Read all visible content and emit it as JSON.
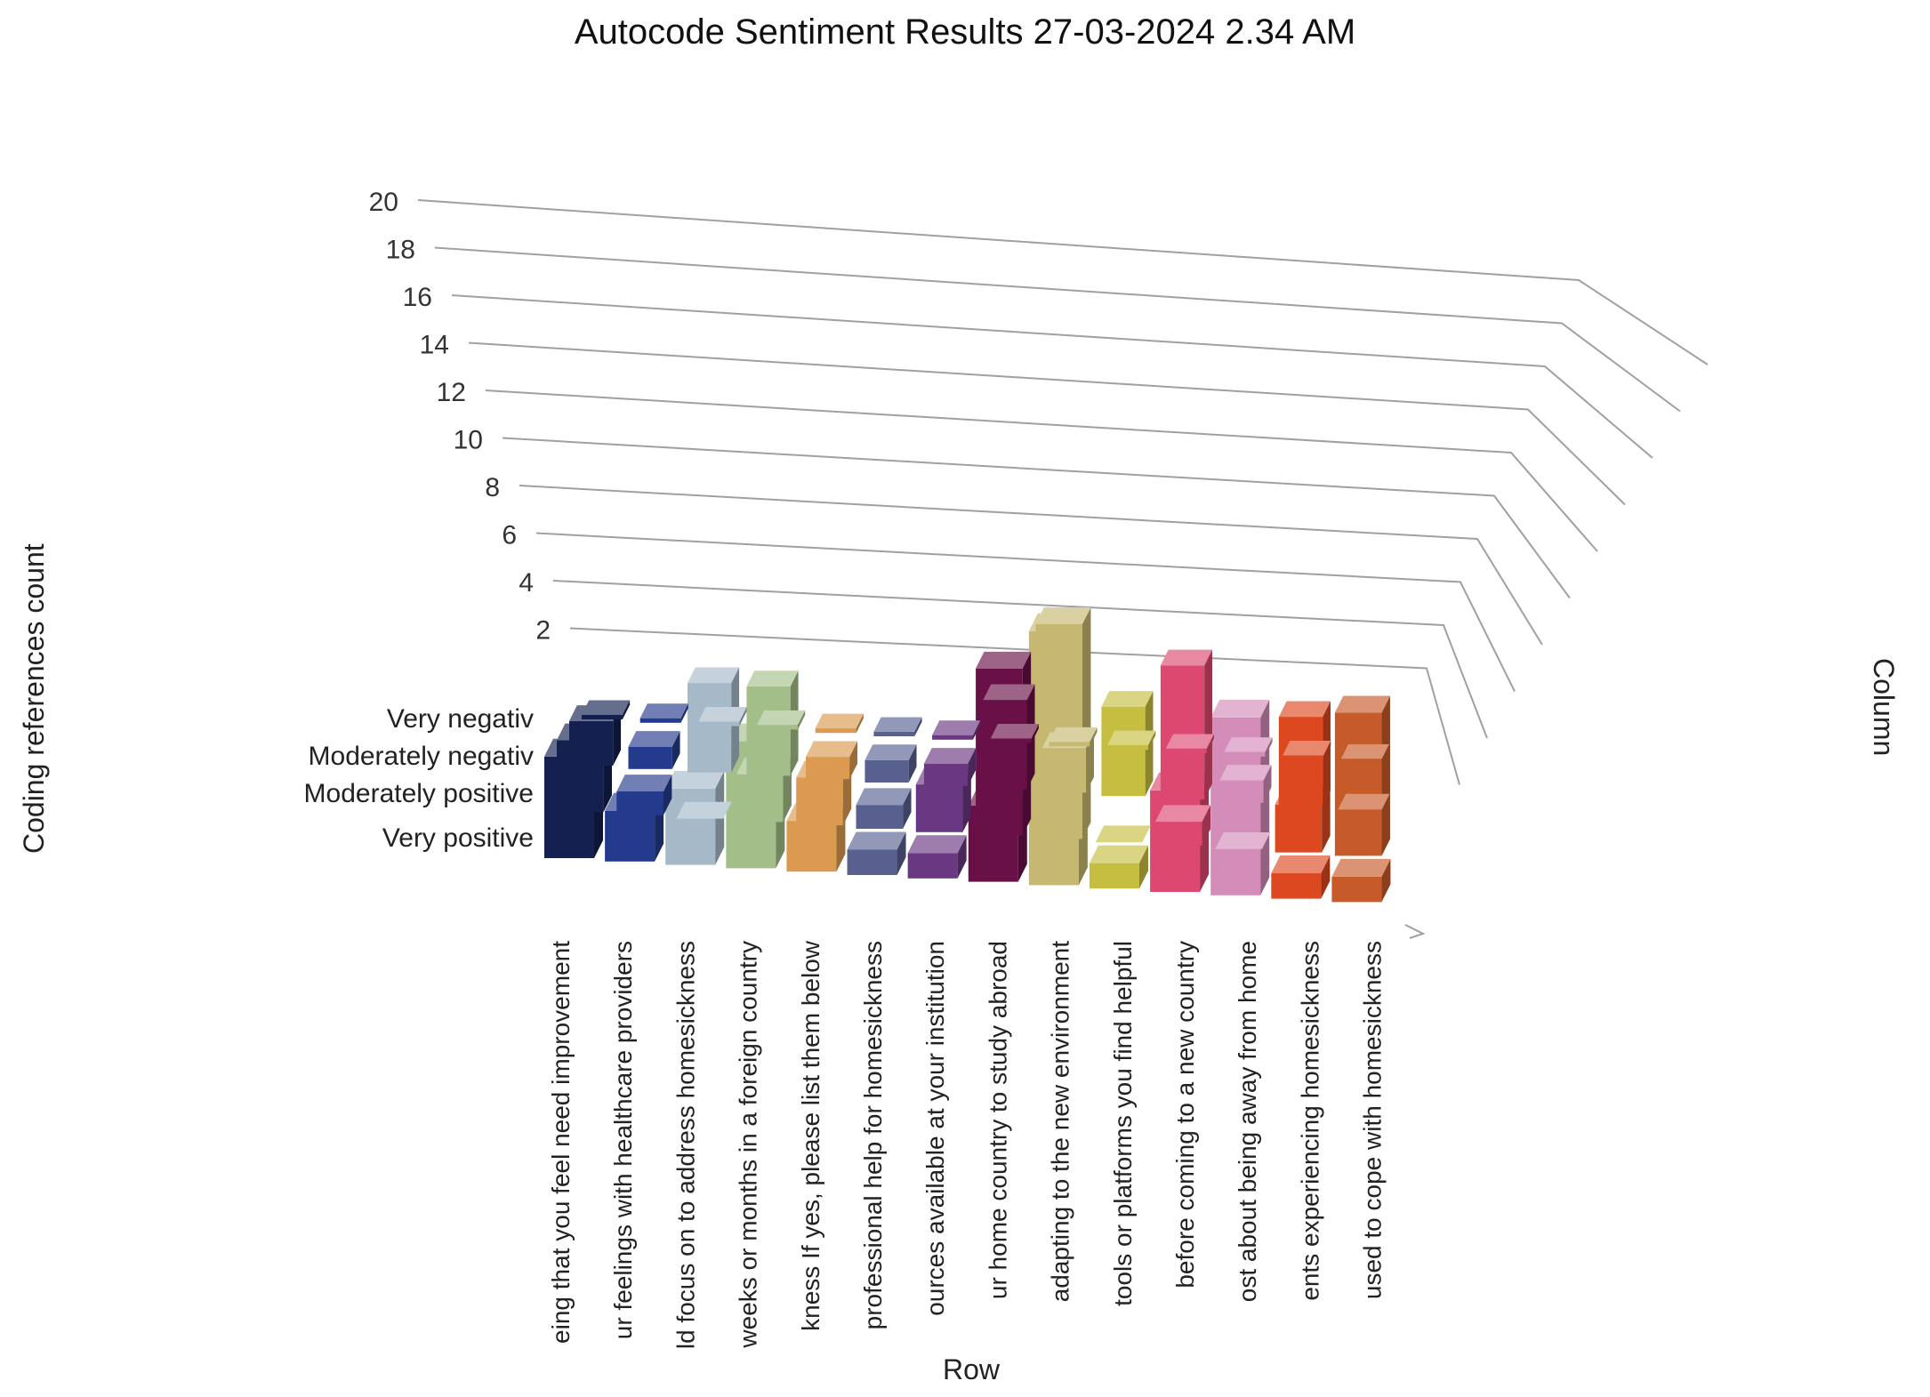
{
  "title": "Autocode Sentiment Results 27-03-2024 2.34 AM",
  "chart_data": {
    "type": "bar3d",
    "title": "Autocode Sentiment Results 27-03-2024 2.34 AM",
    "zlabel": "Coding references count",
    "xlabel": "Row",
    "ylabel": "Column",
    "zlim": [
      0,
      20
    ],
    "zticks": [
      2,
      4,
      6,
      8,
      10,
      12,
      14,
      16,
      18,
      20
    ],
    "series": [
      "Very negative",
      "Moderately negative",
      "Moderately positive",
      "Very positive"
    ],
    "series_display": [
      "Very negativ",
      "Moderately negativ",
      "Moderately positive",
      "Very positive"
    ],
    "categories": [
      "eing that you feel need improvement",
      "ur feelings with healthcare providers",
      "ld focus on to address homesickness",
      "weeks or months in a foreign country",
      "kness If yes, please list them below",
      "professional help for homesickness",
      "ources available at your institution",
      "ur home country to study abroad",
      "adapting to the new environment",
      "tools or platforms you find helpful",
      "before coming to a new country",
      "ost about being away from home",
      "ents experiencing homesickness",
      "used to cope with homesickness"
    ],
    "colors": [
      "#142050",
      "#243a8c",
      "#a6b9c8",
      "#a3be88",
      "#dc9a50",
      "#586090",
      "#6a3782",
      "#6a1048",
      "#c6b870",
      "#c6be40",
      "#dc4870",
      "#d48cb8",
      "#dc4820",
      "#c65a28"
    ],
    "values": {
      "Very negative": [
        4,
        2,
        3,
        5,
        2,
        1,
        1,
        3,
        10,
        1,
        4,
        7,
        1,
        1
      ],
      "Moderately negative": [
        3,
        1,
        0,
        2,
        2,
        1,
        2,
        7,
        9,
        0,
        1,
        0,
        2,
        6
      ],
      "Moderately positive": [
        2,
        1,
        4,
        4,
        1,
        1,
        1,
        4,
        2,
        4,
        6,
        1,
        4,
        0
      ],
      "Very positive": [
        1,
        1,
        1,
        1,
        1,
        1,
        1,
        1,
        1,
        1,
        1,
        1,
        1,
        1
      ]
    }
  }
}
